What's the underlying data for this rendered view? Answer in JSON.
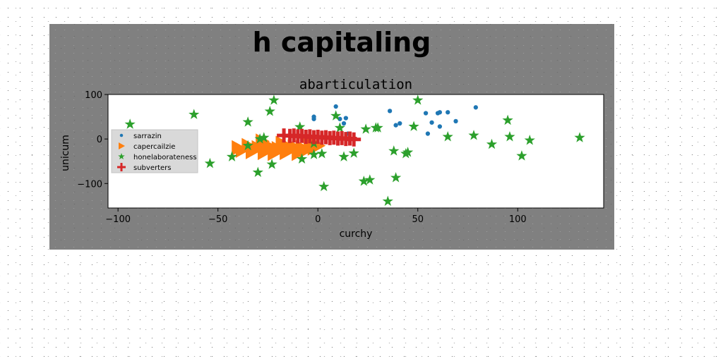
{
  "chart_data": {
    "type": "scatter",
    "suptitle": "h capitaling",
    "title": "abarticulation",
    "xlabel": "curchy",
    "ylabel": "unicum",
    "xlim": [
      -105,
      143
    ],
    "ylim": [
      -155,
      100
    ],
    "xticks": [
      -100,
      -50,
      0,
      50,
      100
    ],
    "yticks": [
      -100,
      0,
      100
    ],
    "grid": false,
    "legend_position": "center-left",
    "series": [
      {
        "name": "sarrazin",
        "marker": "circle",
        "color": "#1f77b4",
        "points": [
          [
            -2,
            50
          ],
          [
            -2,
            45
          ],
          [
            9,
            73
          ],
          [
            11,
            45
          ],
          [
            13,
            35
          ],
          [
            14,
            47
          ],
          [
            15,
            12
          ],
          [
            36,
            63
          ],
          [
            39,
            31
          ],
          [
            41,
            35
          ],
          [
            54,
            58
          ],
          [
            55,
            12
          ],
          [
            57,
            37
          ],
          [
            60,
            58
          ],
          [
            61,
            28
          ],
          [
            61,
            60
          ],
          [
            65,
            60
          ],
          [
            69,
            40
          ],
          [
            79,
            71
          ]
        ]
      },
      {
        "name": "capercailzie",
        "marker": "triangle-right",
        "color": "#ff7f0e",
        "points": [
          [
            -40,
            -20
          ],
          [
            -38,
            -25
          ],
          [
            -35,
            -15
          ],
          [
            -33,
            -28
          ],
          [
            -30,
            -20
          ],
          [
            -28,
            -5
          ],
          [
            -27,
            -30
          ],
          [
            -25,
            -15
          ],
          [
            -22,
            -32
          ],
          [
            -20,
            -22
          ],
          [
            -18,
            -10
          ],
          [
            -16,
            -30
          ],
          [
            -14,
            -25
          ],
          [
            -12,
            -18
          ],
          [
            -10,
            -32
          ],
          [
            -8,
            -20
          ],
          [
            -6,
            -25
          ],
          [
            -4,
            -12
          ],
          [
            -2,
            -20
          ],
          [
            0,
            -15
          ]
        ]
      },
      {
        "name": "honelaborateness",
        "marker": "star",
        "color": "#2ca02c",
        "points": [
          [
            -94,
            33
          ],
          [
            -62,
            55
          ],
          [
            -54,
            -55
          ],
          [
            -43,
            -40
          ],
          [
            -35,
            38
          ],
          [
            -35,
            -15
          ],
          [
            -30,
            -75
          ],
          [
            -29,
            0
          ],
          [
            -27,
            3
          ],
          [
            -24,
            62
          ],
          [
            -23,
            -57
          ],
          [
            -22,
            87
          ],
          [
            -9,
            27
          ],
          [
            -8,
            -45
          ],
          [
            -2,
            -35
          ],
          [
            -2,
            -10
          ],
          [
            2,
            -33
          ],
          [
            3,
            -107
          ],
          [
            9,
            52
          ],
          [
            11,
            25
          ],
          [
            13,
            -40
          ],
          [
            18,
            -32
          ],
          [
            23,
            -95
          ],
          [
            24,
            22
          ],
          [
            26,
            -92
          ],
          [
            29,
            25
          ],
          [
            30,
            25
          ],
          [
            35,
            -140
          ],
          [
            38,
            -27
          ],
          [
            39,
            -87
          ],
          [
            44,
            -33
          ],
          [
            45,
            -30
          ],
          [
            48,
            28
          ],
          [
            50,
            87
          ],
          [
            65,
            5
          ],
          [
            78,
            8
          ],
          [
            87,
            -12
          ],
          [
            95,
            42
          ],
          [
            96,
            5
          ],
          [
            102,
            -38
          ],
          [
            106,
            -3
          ],
          [
            131,
            3
          ]
        ]
      },
      {
        "name": "subverters",
        "marker": "plus",
        "color": "#d62728",
        "points": [
          [
            -17,
            8
          ],
          [
            -14,
            7
          ],
          [
            -12,
            8
          ],
          [
            -10,
            6
          ],
          [
            -8,
            7
          ],
          [
            -6,
            5
          ],
          [
            -4,
            6
          ],
          [
            -2,
            4
          ],
          [
            0,
            5
          ],
          [
            2,
            3
          ],
          [
            4,
            4
          ],
          [
            6,
            2
          ],
          [
            8,
            3
          ],
          [
            10,
            1
          ],
          [
            12,
            2
          ],
          [
            14,
            0
          ],
          [
            16,
            1
          ],
          [
            18,
            -1
          ]
        ]
      }
    ]
  }
}
